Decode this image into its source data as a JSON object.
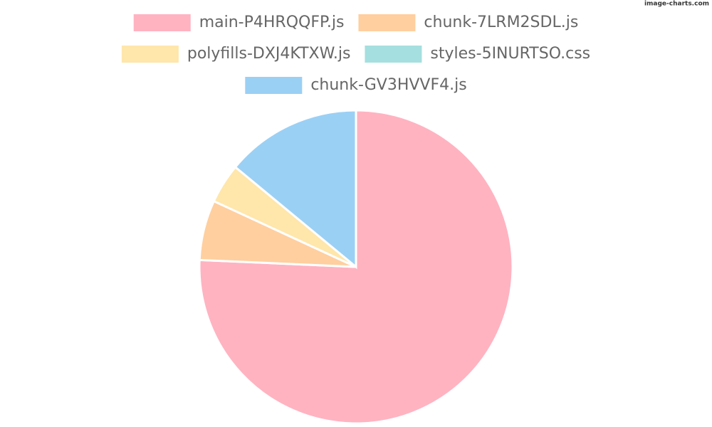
{
  "chart_data": {
    "type": "pie",
    "watermark": "image-charts.com",
    "categories": [
      "main-P4HRQQFP.js",
      "chunk-7LRM2SDL.js",
      "polyfills-DXJ4KTXW.js",
      "styles-5INURTSO.css",
      "chunk-GV3HVVF4.js"
    ],
    "values": [
      75.7,
      6.2,
      4.1,
      0,
      14.0
    ],
    "colors": [
      "#ffb3c1",
      "#ffcf9f",
      "#ffe6aa",
      "#a5dfdf",
      "#9bd0f5"
    ],
    "legend": "top"
  }
}
